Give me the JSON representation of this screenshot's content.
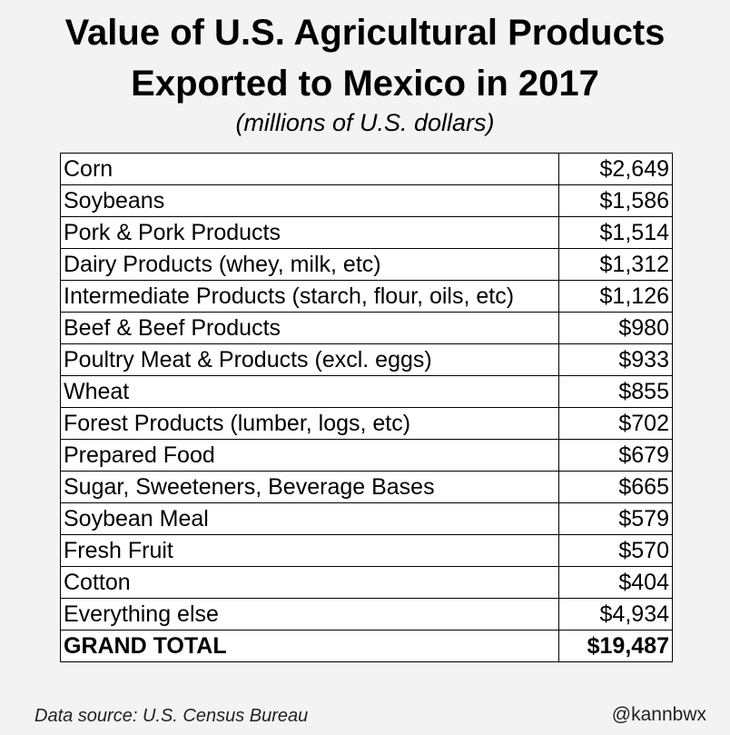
{
  "title_line1": "Value of U.S. Agricultural Products",
  "title_line2": "Exported to Mexico in 2017",
  "subtitle": "(millions of U.S. dollars)",
  "source": "Data source: U.S. Census Bureau",
  "handle": "@kannbwx",
  "chart_data": {
    "type": "table",
    "title": "Value of U.S. Agricultural Products Exported to Mexico in 2017",
    "subtitle": "(millions of U.S. dollars)",
    "rows": [
      {
        "label": "Corn",
        "value": 2649,
        "display": "$2,649"
      },
      {
        "label": "Soybeans",
        "value": 1586,
        "display": "$1,586"
      },
      {
        "label": "Pork & Pork Products",
        "value": 1514,
        "display": "$1,514"
      },
      {
        "label": "Dairy Products (whey, milk, etc)",
        "value": 1312,
        "display": "$1,312"
      },
      {
        "label": "Intermediate Products (starch, flour, oils, etc)",
        "value": 1126,
        "display": "$1,126"
      },
      {
        "label": "Beef & Beef Products",
        "value": 980,
        "display": "$980"
      },
      {
        "label": "Poultry Meat & Products (excl. eggs)",
        "value": 933,
        "display": "$933"
      },
      {
        "label": "Wheat",
        "value": 855,
        "display": "$855"
      },
      {
        "label": "Forest Products (lumber, logs, etc)",
        "value": 702,
        "display": "$702"
      },
      {
        "label": "Prepared Food",
        "value": 679,
        "display": "$679"
      },
      {
        "label": "Sugar, Sweeteners, Beverage Bases",
        "value": 665,
        "display": "$665"
      },
      {
        "label": "Soybean Meal",
        "value": 579,
        "display": "$579"
      },
      {
        "label": "Fresh Fruit",
        "value": 570,
        "display": "$570"
      },
      {
        "label": "Cotton",
        "value": 404,
        "display": "$404"
      },
      {
        "label": "Everything else",
        "value": 4934,
        "display": "$4,934"
      }
    ],
    "total": {
      "label": "GRAND TOTAL",
      "value": 19487,
      "display": "$19,487"
    }
  }
}
